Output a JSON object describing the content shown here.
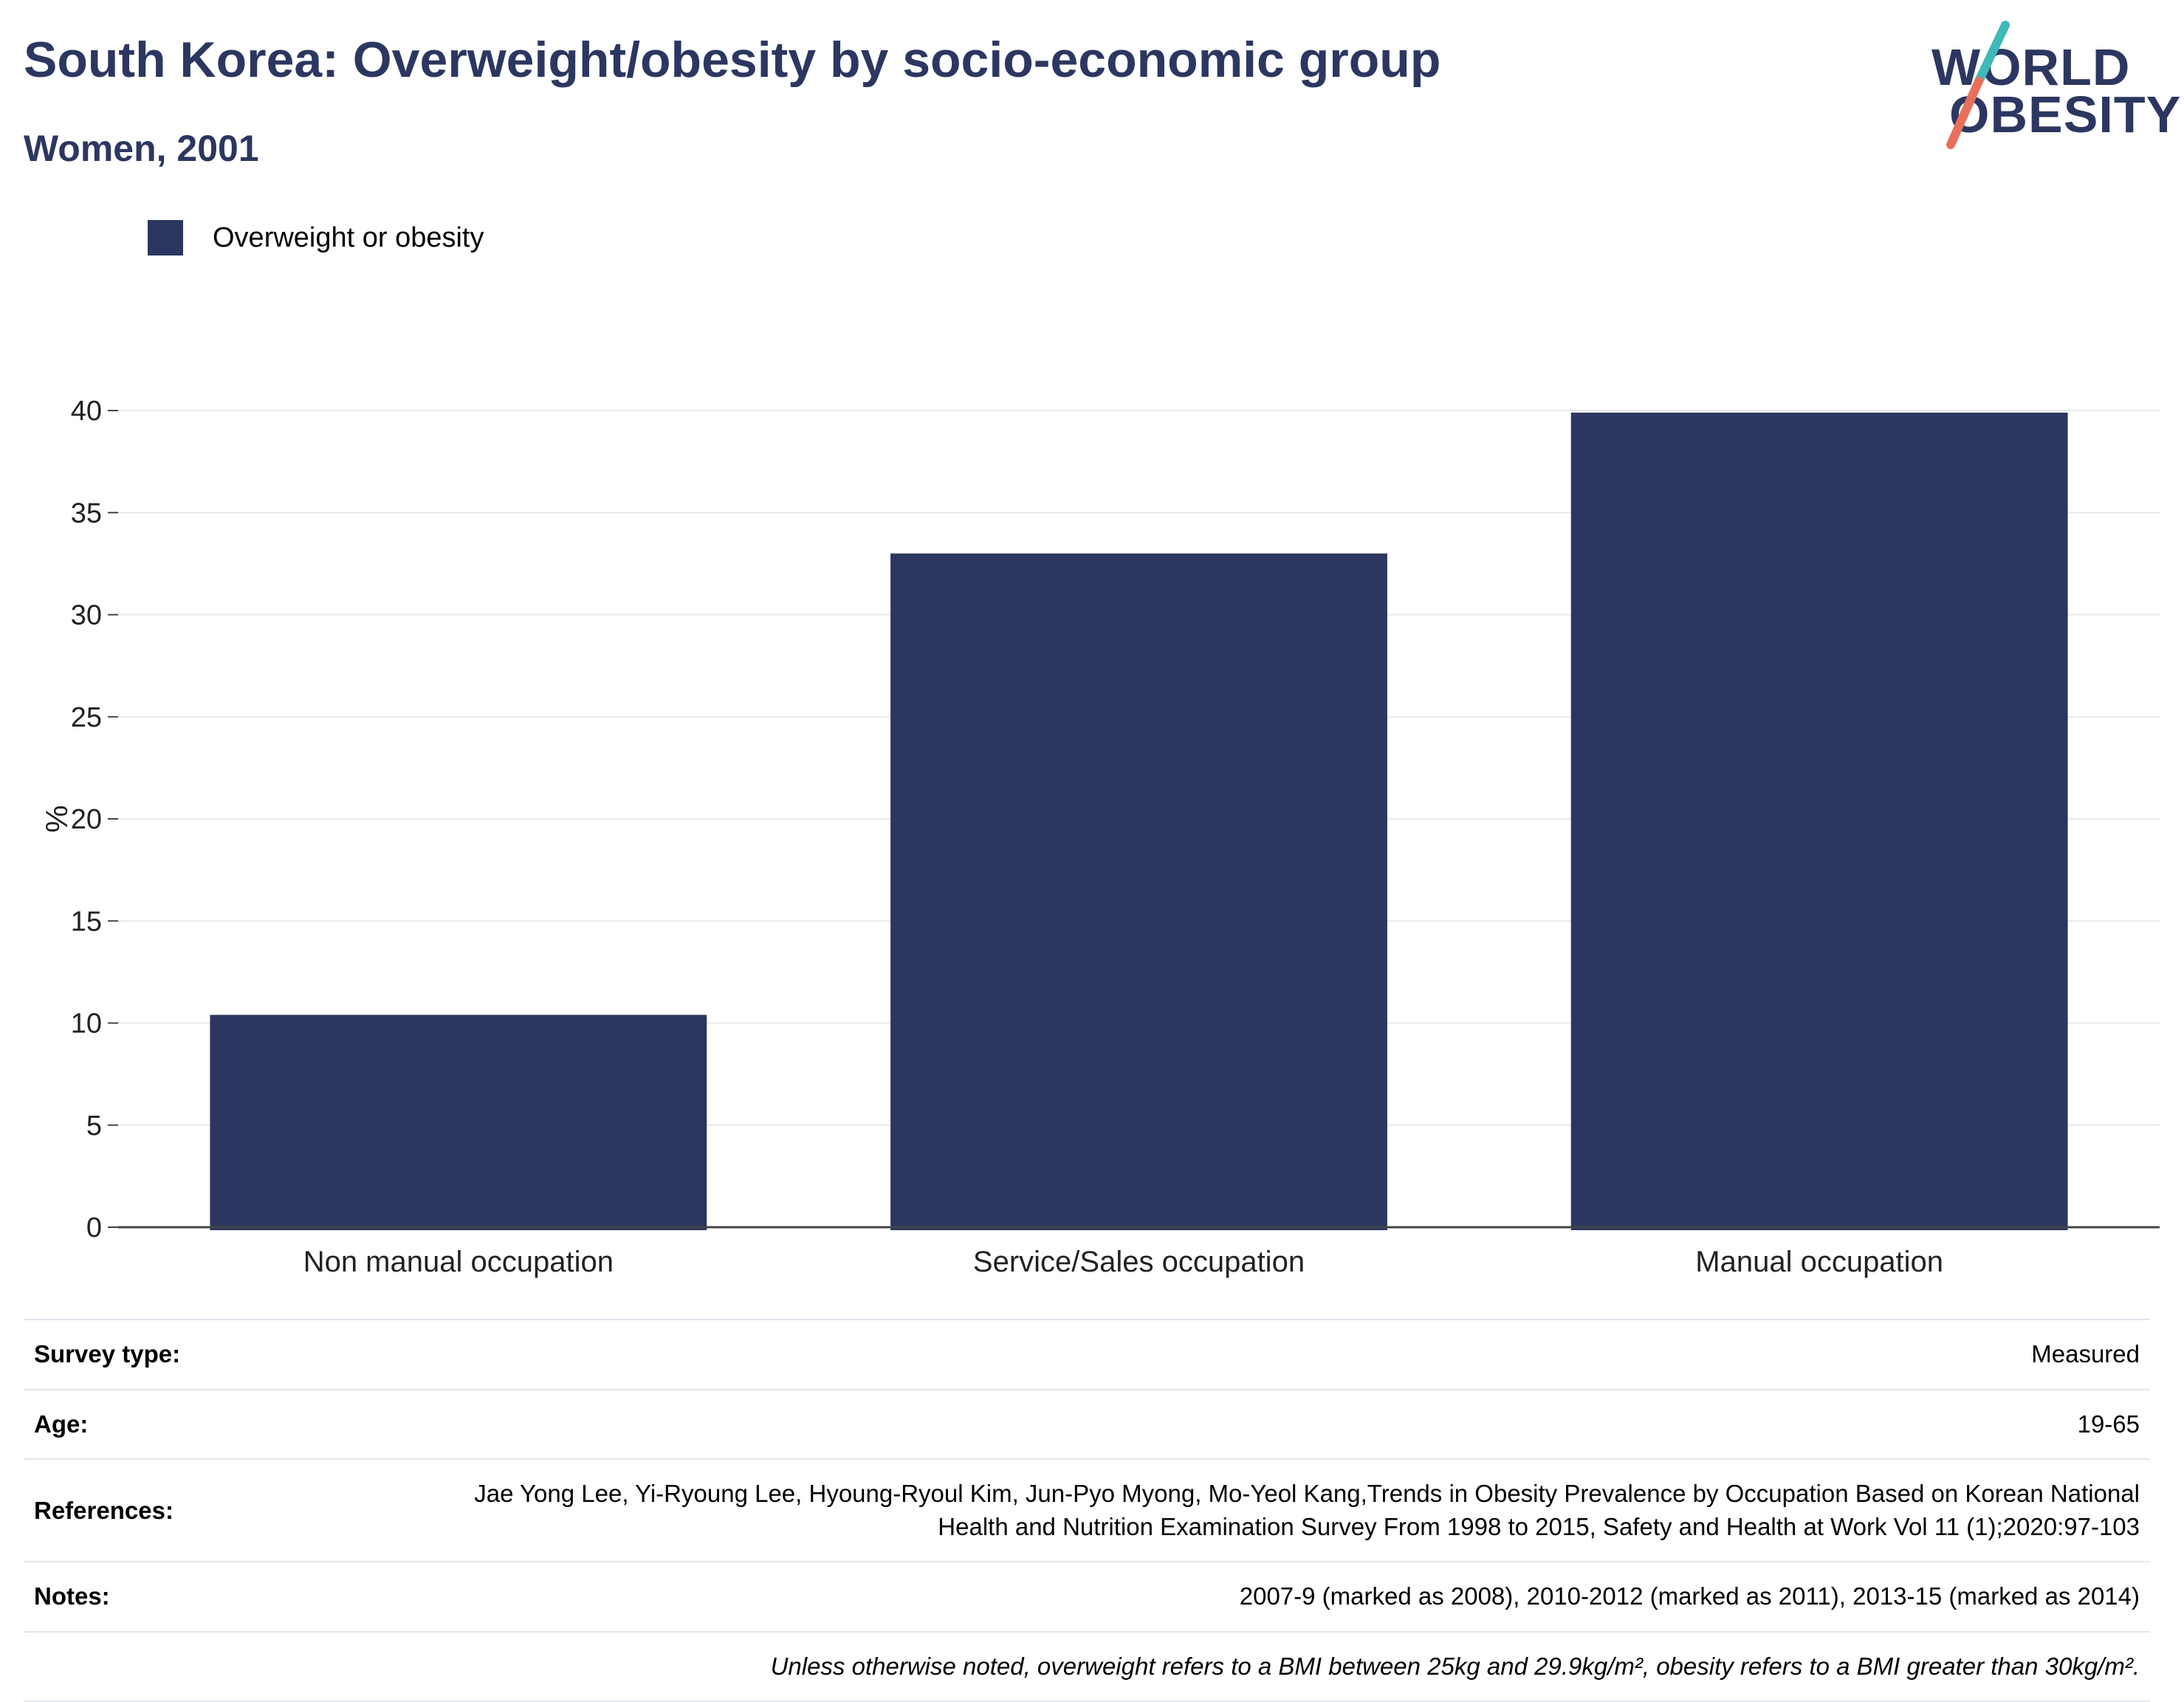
{
  "header": {
    "title": "South Korea: Overweight/obesity by socio-economic group",
    "subtitle": "Women, 2001"
  },
  "logo": {
    "line1": "WORLD",
    "line2": "OBESITY",
    "colors": {
      "text": "#2c3761",
      "slash_top": "#3fb8b8",
      "slash_bottom": "#e8705a"
    }
  },
  "chart_data": {
    "type": "bar",
    "categories": [
      "Non manual occupation",
      "Service/Sales occupation",
      "Manual occupation"
    ],
    "series": [
      {
        "name": "Overweight or obesity",
        "values": [
          10.4,
          33.0,
          39.9
        ],
        "color": "#2b3661"
      }
    ],
    "ylabel": "%",
    "xlabel": "",
    "ylim": [
      0,
      40
    ],
    "yticks": [
      0,
      5,
      10,
      15,
      20,
      25,
      30,
      35,
      40
    ],
    "grid": true,
    "legend_position": "top-left"
  },
  "meta": [
    {
      "key": "Survey type:",
      "value": "Measured"
    },
    {
      "key": "Age:",
      "value": "19-65"
    },
    {
      "key": "References:",
      "value": "Jae Yong Lee, Yi-Ryoung Lee, Hyoung-Ryoul Kim, Jun-Pyo Myong, Mo-Yeol Kang,Trends in Obesity Prevalence by Occupation Based on Korean National Health and Nutrition Examination Survey From 1998 to 2015, Safety and Health at Work Vol 11 (1);2020:97-103"
    },
    {
      "key": "Notes:",
      "value": "2007-9 (marked as 2008), 2010-2012 (marked as 2011), 2013-15 (marked as 2014)"
    }
  ],
  "footnote": "Unless otherwise noted, overweight refers to a BMI between 25kg and 29.9kg/m², obesity refers to a BMI greater than 30kg/m²."
}
